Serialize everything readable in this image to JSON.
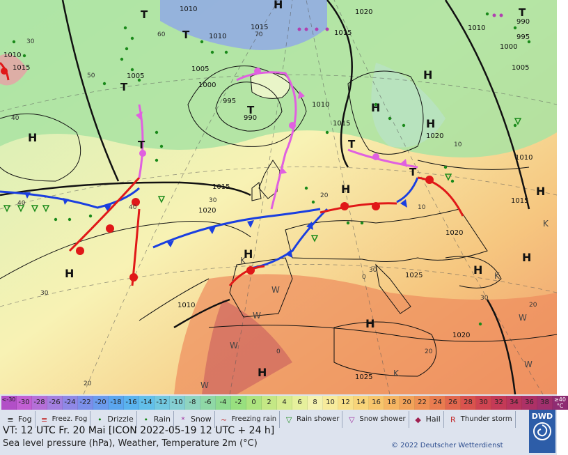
{
  "map": {
    "highs": [
      {
        "label": "H"
      },
      {
        "label": "H"
      },
      {
        "label": "H"
      },
      {
        "label": "H"
      },
      {
        "label": "H"
      },
      {
        "label": "H"
      },
      {
        "label": "H"
      },
      {
        "label": "H"
      },
      {
        "label": "H"
      },
      {
        "label": "H"
      },
      {
        "label": "H"
      },
      {
        "label": "H"
      },
      {
        "label": "H"
      }
    ],
    "lows": [
      {
        "label": "T"
      },
      {
        "label": "T"
      },
      {
        "label": "T"
      },
      {
        "label": "T"
      },
      {
        "label": "T"
      },
      {
        "label": "T"
      },
      {
        "label": "T"
      },
      {
        "label": "T"
      }
    ],
    "k_marks": [
      "K",
      "K",
      "K",
      "K"
    ],
    "w_marks": [
      "W",
      "W",
      "W",
      "W",
      "W",
      "W"
    ],
    "isobar_labels": [
      "1010",
      "1015",
      "1010",
      "1005",
      "1000",
      "995",
      "990",
      "1005",
      "1010",
      "1015",
      "1020",
      "1015",
      "1020",
      "1010",
      "1005",
      "1000",
      "995",
      "990",
      "1015",
      "1010",
      "1020",
      "1015",
      "1025",
      "1020",
      "1015",
      "1025",
      "1010",
      "1010",
      "1020"
    ],
    "temp_labels": [
      "30",
      "40",
      "50",
      "60",
      "70",
      "40",
      "30",
      "20",
      "0",
      "40",
      "30",
      "20",
      "10",
      "0",
      "20",
      "30",
      "30",
      "20",
      "10"
    ]
  },
  "legend": {
    "scale_end_low": "<-30",
    "scale_values": [
      "-30",
      "-28",
      "-26",
      "-24",
      "-22",
      "-20",
      "-18",
      "-16",
      "-14",
      "-12",
      "-10",
      "-8",
      "-6",
      "-4",
      "-2",
      "0",
      "2",
      "4",
      "6",
      "8",
      "10",
      "12",
      "14",
      "16",
      "18",
      "20",
      "22",
      "24",
      "26",
      "28",
      "30",
      "32",
      "34",
      "36",
      "38"
    ],
    "scale_end_high": "≥40 °C",
    "colors": [
      "#b24fc7",
      "#c25fd3",
      "#b56fd8",
      "#a37fe0",
      "#8f88e6",
      "#7b8fea",
      "#6b9bed",
      "#5ba6ef",
      "#5ab3ee",
      "#62bfe9",
      "#72c8e0",
      "#84cfd2",
      "#8fd4bf",
      "#8fd8a6",
      "#8fdb8f",
      "#98e07f",
      "#ade47f",
      "#c4e885",
      "#d6ec8f",
      "#e6f09c",
      "#f4f2b0",
      "#f7eb9c",
      "#f8e088",
      "#f8d479",
      "#f7c56c",
      "#f5b562",
      "#f2a35a",
      "#ee9054",
      "#e97c50",
      "#e2674e",
      "#d9534e",
      "#cf4451",
      "#c43a57",
      "#b8345e",
      "#ad3166",
      "#a12f6e",
      "#8f2c72"
    ],
    "weather": [
      {
        "symbol": "≡",
        "label": "Fog"
      },
      {
        "symbol": "≡",
        "label": "Freez. Fog"
      },
      {
        "symbol": "•",
        "label": "Drizzle"
      },
      {
        "symbol": "•",
        "label": "Rain"
      },
      {
        "symbol": "*",
        "label": "Snow"
      },
      {
        "symbol": "~",
        "label": "Freezing rain"
      },
      {
        "symbol": "▽",
        "label": "Rain shower"
      },
      {
        "symbol": "▽",
        "label": "Snow shower"
      },
      {
        "symbol": "◆",
        "label": "Hail"
      },
      {
        "symbol": "R",
        "label": "Thunder storm"
      }
    ],
    "valid_time": "VT: 12 UTC Fr.  20 Mai [ICON 2022-05-19  12 UTC + 24 h]",
    "parameters": "Sea level pressure (hPa), Weather, Temperature 2m (°C)",
    "copyright": "© 2022 Deutscher Wetterdienst",
    "logo_text": "DWD"
  }
}
